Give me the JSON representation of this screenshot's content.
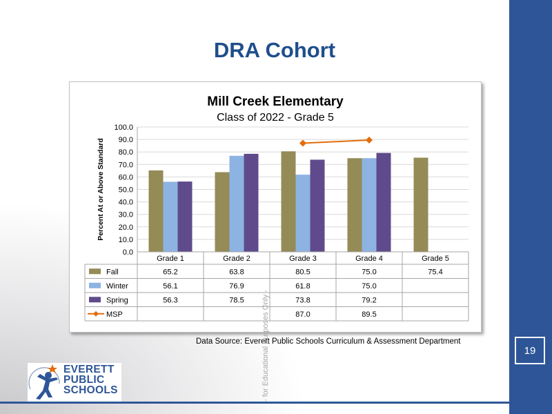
{
  "slide": {
    "title": "DRA Cohort",
    "page_number": "19",
    "source": "Data Source: Everett Public Schools Curriculum & Assessment Department",
    "watermark": "- for Educational Purposes Only -",
    "logo_lines": [
      "EVERETT",
      "PUBLIC",
      "SCHOOLS"
    ]
  },
  "colors": {
    "Fall": "#958b57",
    "Winter": "#8db3e2",
    "Spring": "#5f4b8b",
    "MSP": "#e36c0a",
    "accent": "#2e5597",
    "title": "#1f4e8c"
  },
  "chart_data": {
    "type": "bar",
    "title": "Mill Creek Elementary",
    "subtitle": "Class of 2022 - Grade 5",
    "xlabel": "",
    "ylabel": "Percent At or Above Standard",
    "ylim": [
      0,
      100
    ],
    "yticks": [
      "0.0",
      "10.0",
      "20.0",
      "30.0",
      "40.0",
      "50.0",
      "60.0",
      "70.0",
      "80.0",
      "90.0",
      "100.0"
    ],
    "grid": true,
    "legend": "data-table",
    "categories": [
      "Grade 1",
      "Grade 2",
      "Grade 3",
      "Grade 4",
      "Grade 5"
    ],
    "series": [
      {
        "name": "Fall",
        "type": "bar",
        "values": [
          65.2,
          63.8,
          80.5,
          75.0,
          75.4
        ]
      },
      {
        "name": "Winter",
        "type": "bar",
        "values": [
          56.1,
          76.9,
          61.8,
          75.0,
          null
        ]
      },
      {
        "name": "Spring",
        "type": "bar",
        "values": [
          56.3,
          78.5,
          73.8,
          79.2,
          null
        ]
      },
      {
        "name": "MSP",
        "type": "line",
        "values": [
          null,
          null,
          87.0,
          89.5,
          null
        ]
      }
    ],
    "table": [
      [
        "65.2",
        "63.8",
        "80.5",
        "75.0",
        "75.4"
      ],
      [
        "56.1",
        "76.9",
        "61.8",
        "75.0",
        ""
      ],
      [
        "56.3",
        "78.5",
        "73.8",
        "79.2",
        ""
      ],
      [
        "",
        "",
        "87.0",
        "89.5",
        ""
      ]
    ]
  }
}
